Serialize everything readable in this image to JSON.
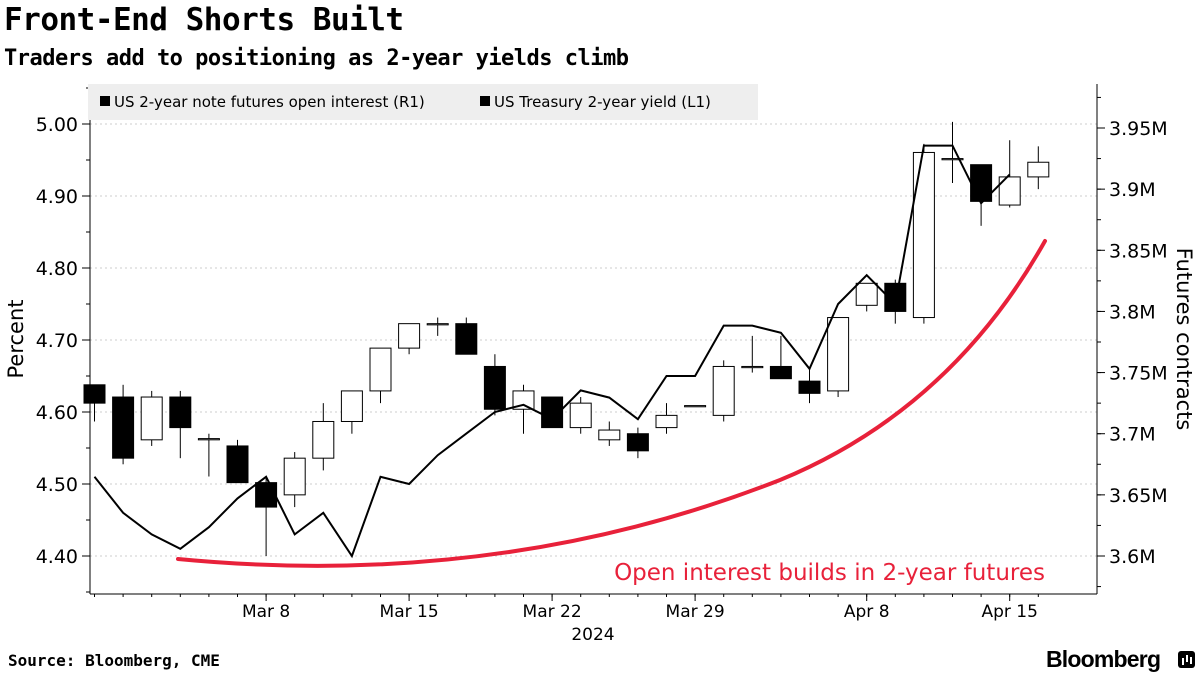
{
  "title": "Front-End Shorts Built",
  "subtitle": "Traders add to positioning as 2-year yields climb",
  "source": "Source: Bloomberg, CME",
  "brand": "Bloomberg",
  "colors": {
    "line": "#000000",
    "candle_down": "#000000",
    "candle_up": "#ffffff",
    "annotation": "#e8213a",
    "legend_bg": "#eeeeee"
  },
  "chart_data": {
    "type": "candlestick + line",
    "legend": [
      "US 2-year note futures open interest (R1)",
      "US Treasury 2-year yield (L1)"
    ],
    "legend_placement": "top-left",
    "y_left": {
      "label": "Percent",
      "range": [
        4.35,
        5.08
      ],
      "ticks": [
        "4.40",
        "4.50",
        "4.60",
        "4.70",
        "4.80",
        "4.90",
        "5.00"
      ]
    },
    "y_right": {
      "label": "Futures contracts",
      "range": [
        3.57,
        3.98
      ],
      "ticks": [
        "3.6M",
        "3.65M",
        "3.7M",
        "3.75M",
        "3.8M",
        "3.85M",
        "3.9M",
        "3.95M"
      ]
    },
    "x_ticks": [
      "Mar 8",
      "Mar 15",
      "Mar 22",
      "Mar 29",
      "Apr 8",
      "Apr 15"
    ],
    "x_year": "2024",
    "yield_series": {
      "name": "US Treasury 2-year yield (L1)",
      "axis": "left",
      "points": [
        {
          "date": "2024-02-29",
          "y": 4.51
        },
        {
          "date": "2024-03-01",
          "y": 4.46
        },
        {
          "date": "2024-03-04",
          "y": 4.43
        },
        {
          "date": "2024-03-05",
          "y": 4.41
        },
        {
          "date": "2024-03-06",
          "y": 4.44
        },
        {
          "date": "2024-03-07",
          "y": 4.48
        },
        {
          "date": "2024-03-08",
          "y": 4.51
        },
        {
          "date": "2024-03-11",
          "y": 4.43
        },
        {
          "date": "2024-03-12",
          "y": 4.46
        },
        {
          "date": "2024-03-13",
          "y": 4.4
        },
        {
          "date": "2024-03-14",
          "y": 4.51
        },
        {
          "date": "2024-03-15",
          "y": 4.5
        },
        {
          "date": "2024-03-18",
          "y": 4.54
        },
        {
          "date": "2024-03-19",
          "y": 4.57
        },
        {
          "date": "2024-03-20",
          "y": 4.6
        },
        {
          "date": "2024-03-21",
          "y": 4.61
        },
        {
          "date": "2024-03-22",
          "y": 4.59
        },
        {
          "date": "2024-03-25",
          "y": 4.63
        },
        {
          "date": "2024-03-26",
          "y": 4.62
        },
        {
          "date": "2024-03-27",
          "y": 4.59
        },
        {
          "date": "2024-03-28",
          "y": 4.65
        },
        {
          "date": "2024-03-29",
          "y": 4.65
        },
        {
          "date": "2024-04-01",
          "y": 4.72
        },
        {
          "date": "2024-04-02",
          "y": 4.72
        },
        {
          "date": "2024-04-03",
          "y": 4.71
        },
        {
          "date": "2024-04-04",
          "y": 4.66
        },
        {
          "date": "2024-04-05",
          "y": 4.75
        },
        {
          "date": "2024-04-08",
          "y": 4.79
        },
        {
          "date": "2024-04-09",
          "y": 4.75
        },
        {
          "date": "2024-04-10",
          "y": 4.97
        },
        {
          "date": "2024-04-11",
          "y": 4.97
        },
        {
          "date": "2024-04-12",
          "y": 4.89
        },
        {
          "date": "2024-04-15",
          "y": 4.93
        }
      ]
    },
    "open_interest_series": {
      "name": "US 2-year note futures open interest (R1)",
      "axis": "right",
      "unit": "M contracts",
      "candles": [
        {
          "date": "2024-02-29",
          "open": 3.74,
          "close": 3.725,
          "high": 3.74,
          "low": 3.71
        },
        {
          "date": "2024-03-01",
          "open": 3.73,
          "close": 3.68,
          "high": 3.74,
          "low": 3.675
        },
        {
          "date": "2024-03-04",
          "open": 3.695,
          "close": 3.73,
          "high": 3.735,
          "low": 3.69
        },
        {
          "date": "2024-03-05",
          "open": 3.73,
          "close": 3.705,
          "high": 3.735,
          "low": 3.68
        },
        {
          "date": "2024-03-06",
          "open": 3.695,
          "close": 3.696,
          "high": 3.7,
          "low": 3.665
        },
        {
          "date": "2024-03-07",
          "open": 3.69,
          "close": 3.66,
          "high": 3.695,
          "low": 3.66
        },
        {
          "date": "2024-03-08",
          "open": 3.66,
          "close": 3.64,
          "high": 3.665,
          "low": 3.6
        },
        {
          "date": "2024-03-11",
          "open": 3.65,
          "close": 3.68,
          "high": 3.685,
          "low": 3.64
        },
        {
          "date": "2024-03-12",
          "open": 3.68,
          "close": 3.71,
          "high": 3.725,
          "low": 3.67
        },
        {
          "date": "2024-03-13",
          "open": 3.71,
          "close": 3.735,
          "high": 3.735,
          "low": 3.7
        },
        {
          "date": "2024-03-14",
          "open": 3.735,
          "close": 3.77,
          "high": 3.77,
          "low": 3.725
        },
        {
          "date": "2024-03-15",
          "open": 3.77,
          "close": 3.79,
          "high": 3.79,
          "low": 3.765
        },
        {
          "date": "2024-03-18",
          "open": 3.79,
          "close": 3.79,
          "high": 3.795,
          "low": 3.78
        },
        {
          "date": "2024-03-19",
          "open": 3.79,
          "close": 3.765,
          "high": 3.795,
          "low": 3.765
        },
        {
          "date": "2024-03-20",
          "open": 3.755,
          "close": 3.72,
          "high": 3.765,
          "low": 3.715
        },
        {
          "date": "2024-03-21",
          "open": 3.72,
          "close": 3.735,
          "high": 3.74,
          "low": 3.7
        },
        {
          "date": "2024-03-22",
          "open": 3.73,
          "close": 3.705,
          "high": 3.73,
          "low": 3.705
        },
        {
          "date": "2024-03-25",
          "open": 3.705,
          "close": 3.725,
          "high": 3.73,
          "low": 3.7
        },
        {
          "date": "2024-03-26",
          "open": 3.695,
          "close": 3.703,
          "high": 3.71,
          "low": 3.69
        },
        {
          "date": "2024-03-27",
          "open": 3.7,
          "close": 3.686,
          "high": 3.705,
          "low": 3.68
        },
        {
          "date": "2024-03-28",
          "open": 3.705,
          "close": 3.715,
          "high": 3.725,
          "low": 3.7
        },
        {
          "date": "2024-03-29",
          "open": 3.723,
          "close": 3.723,
          "high": 3.723,
          "low": 3.723
        },
        {
          "date": "2024-04-01",
          "open": 3.715,
          "close": 3.755,
          "high": 3.76,
          "low": 3.71
        },
        {
          "date": "2024-04-02",
          "open": 3.755,
          "close": 3.755,
          "high": 3.78,
          "low": 3.75
        },
        {
          "date": "2024-04-03",
          "open": 3.755,
          "close": 3.745,
          "high": 3.78,
          "low": 3.745
        },
        {
          "date": "2024-04-04",
          "open": 3.743,
          "close": 3.733,
          "high": 3.753,
          "low": 3.725
        },
        {
          "date": "2024-04-05",
          "open": 3.735,
          "close": 3.795,
          "high": 3.795,
          "low": 3.73
        },
        {
          "date": "2024-04-08",
          "open": 3.805,
          "close": 3.823,
          "high": 3.823,
          "low": 3.8
        },
        {
          "date": "2024-04-09",
          "open": 3.823,
          "close": 3.8,
          "high": 3.826,
          "low": 3.79
        },
        {
          "date": "2024-04-10",
          "open": 3.795,
          "close": 3.93,
          "high": 3.937,
          "low": 3.79
        },
        {
          "date": "2024-04-11",
          "open": 3.925,
          "close": 3.925,
          "high": 3.955,
          "low": 3.905
        },
        {
          "date": "2024-04-12",
          "open": 3.92,
          "close": 3.89,
          "high": 3.92,
          "low": 3.87
        },
        {
          "date": "2024-04-15",
          "open": 3.887,
          "close": 3.91,
          "high": 3.94,
          "low": 3.885
        },
        {
          "date": "2024-04-16",
          "open": 3.91,
          "close": 3.922,
          "high": 3.935,
          "low": 3.9
        }
      ]
    },
    "annotation": "Open interest builds in 2-year futures"
  }
}
